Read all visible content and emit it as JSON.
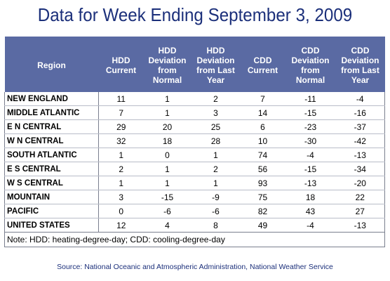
{
  "title": "Data for Week Ending September 3, 2009",
  "columns": [
    "Region",
    "HDD Current",
    "HDD Deviation from Normal",
    "HDD Deviation from Last Year",
    "CDD Current",
    "CDD Deviation from Normal",
    "CDD Deviation from Last Year"
  ],
  "rows": [
    [
      "NEW ENGLAND",
      "11",
      "1",
      "2",
      "7",
      "-11",
      "-4"
    ],
    [
      "MIDDLE ATLANTIC",
      "7",
      "1",
      "3",
      "14",
      "-15",
      "-16"
    ],
    [
      "E N CENTRAL",
      "29",
      "20",
      "25",
      "6",
      "-23",
      "-37"
    ],
    [
      "W N CENTRAL",
      "32",
      "18",
      "28",
      "10",
      "-30",
      "-42"
    ],
    [
      "SOUTH ATLANTIC",
      "1",
      "0",
      "1",
      "74",
      "-4",
      "-13"
    ],
    [
      "E S CENTRAL",
      "2",
      "1",
      "2",
      "56",
      "-15",
      "-34"
    ],
    [
      "W S CENTRAL",
      "1",
      "1",
      "1",
      "93",
      "-13",
      "-20"
    ],
    [
      "MOUNTAIN",
      "3",
      "-15",
      "-9",
      "75",
      "18",
      "22"
    ],
    [
      "PACIFIC",
      "0",
      "-6",
      "-6",
      "82",
      "43",
      "27"
    ],
    [
      "UNITED STATES",
      "12",
      "4",
      "8",
      "49",
      "-4",
      "-13"
    ]
  ],
  "note": "Note: HDD: heating-degree-day; CDD: cooling-degree-day",
  "source": "Source:  National Oceanic and Atmospheric Administration, National Weather Service"
}
